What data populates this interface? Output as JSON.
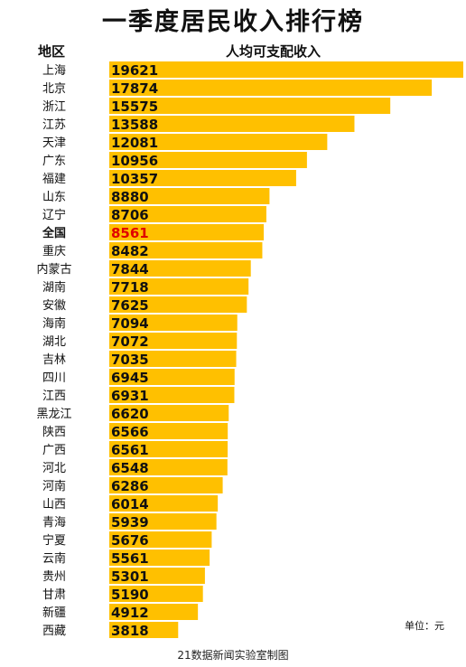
{
  "title": "一季度居民收入排行榜",
  "header": {
    "region": "地区",
    "income": "人均可支配收入"
  },
  "unit_label": "单位：元",
  "footer": "21数据新闻实验室制图",
  "colors": {
    "bar": "#FFC000",
    "highlight_text": "#E00000",
    "value_text": "#111111"
  },
  "chart_data": {
    "type": "bar",
    "orientation": "horizontal",
    "title": "一季度居民收入排行榜",
    "categories": [
      "上海",
      "北京",
      "浙江",
      "江苏",
      "天津",
      "广东",
      "福建",
      "山东",
      "辽宁",
      "全国",
      "重庆",
      "内蒙古",
      "湖南",
      "安徽",
      "海南",
      "湖北",
      "吉林",
      "四川",
      "江西",
      "黑龙江",
      "陕西",
      "广西",
      "河北",
      "河南",
      "山西",
      "青海",
      "宁夏",
      "云南",
      "贵州",
      "甘肃",
      "新疆",
      "西藏"
    ],
    "values": [
      19621,
      17874,
      15575,
      13588,
      12081,
      10956,
      10357,
      8880,
      8706,
      8561,
      8482,
      7844,
      7718,
      7625,
      7094,
      7072,
      7035,
      6945,
      6931,
      6620,
      6566,
      6561,
      6548,
      6286,
      6014,
      5939,
      5676,
      5561,
      5301,
      5190,
      4912,
      3818
    ],
    "highlight": "全国",
    "ylabel": "人均可支配收入",
    "xlabel": "地区"
  }
}
